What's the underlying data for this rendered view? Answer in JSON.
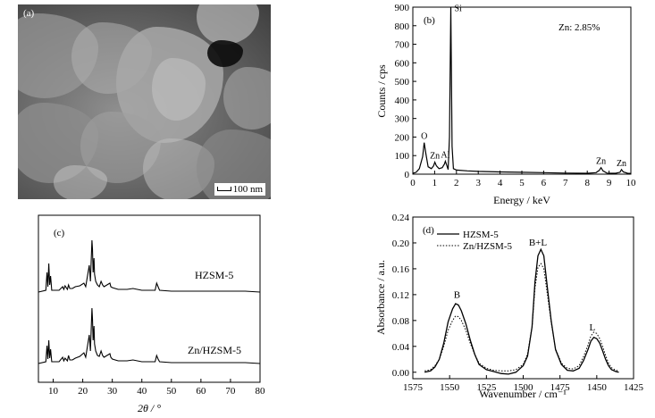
{
  "panels": {
    "a": {
      "label": "(a)",
      "scale_bar": "100 nm"
    },
    "b": {
      "label": "(b)",
      "annotation": "Zn: 2.85%"
    },
    "c": {
      "label": "(c)"
    },
    "d": {
      "label": "(d)"
    }
  },
  "chart_data": [
    {
      "id": "b",
      "type": "line",
      "xlabel": "Energy / keV",
      "ylabel": "Counts / cps",
      "xlim": [
        0,
        10
      ],
      "ylim": [
        0,
        900
      ],
      "xticks": [
        0,
        1,
        2,
        3,
        4,
        5,
        6,
        7,
        8,
        9,
        10
      ],
      "yticks": [
        0,
        100,
        200,
        300,
        400,
        500,
        600,
        700,
        800,
        900
      ],
      "peak_labels": [
        {
          "text": "O",
          "x": 0.52,
          "y": 170
        },
        {
          "text": "Zn",
          "x": 1.01,
          "y": 65
        },
        {
          "text": "Al",
          "x": 1.49,
          "y": 70
        },
        {
          "text": "Si",
          "x": 1.74,
          "y": 900
        },
        {
          "text": "Zn",
          "x": 8.63,
          "y": 35
        },
        {
          "text": "Zn",
          "x": 9.57,
          "y": 25
        }
      ],
      "series": [
        {
          "x": [
            0,
            0.15,
            0.3,
            0.45,
            0.52,
            0.6,
            0.7,
            0.85,
            0.95,
            1.01,
            1.08,
            1.2,
            1.35,
            1.45,
            1.49,
            1.55,
            1.62,
            1.68,
            1.74,
            1.8,
            1.86,
            2.0,
            2.5,
            3,
            4,
            5,
            6,
            7,
            8,
            8.4,
            8.55,
            8.63,
            8.72,
            8.9,
            9.3,
            9.5,
            9.57,
            9.65,
            9.85,
            10
          ],
          "y": [
            5,
            10,
            30,
            95,
            170,
            110,
            40,
            30,
            45,
            65,
            45,
            30,
            35,
            55,
            70,
            50,
            25,
            200,
            900,
            150,
            30,
            22,
            18,
            15,
            12,
            10,
            8,
            6,
            5,
            8,
            20,
            35,
            18,
            6,
            5,
            10,
            25,
            12,
            5,
            4
          ]
        }
      ]
    },
    {
      "id": "c",
      "type": "line",
      "xlabel": "2θ / °",
      "xlim": [
        5,
        80
      ],
      "xticks": [
        10,
        20,
        30,
        40,
        50,
        60,
        70,
        80
      ],
      "series": [
        {
          "name": "HZSM-5",
          "x": [
            5,
            7.5,
            7.9,
            8.2,
            8.5,
            8.8,
            9.1,
            9.5,
            12,
            13.2,
            13.6,
            14,
            14.8,
            15.2,
            15.6,
            16.5,
            17.5,
            19,
            20.4,
            21,
            22.2,
            22.6,
            23.1,
            23.3,
            23.5,
            23.8,
            24.0,
            24.4,
            25,
            25.6,
            26.2,
            26.7,
            27.2,
            29.2,
            29.5,
            30,
            32,
            35,
            37,
            40,
            44.5,
            45.0,
            45.5,
            46,
            50,
            55,
            60,
            65,
            70,
            75,
            80
          ],
          "y": [
            0,
            2,
            22,
            6,
            32,
            8,
            18,
            2,
            2,
            6,
            3,
            7,
            3,
            8,
            4,
            4,
            6,
            7,
            10,
            6,
            30,
            12,
            58,
            48,
            22,
            38,
            20,
            12,
            8,
            6,
            12,
            8,
            6,
            10,
            6,
            5,
            3,
            3,
            4,
            2,
            2,
            10,
            6,
            2,
            1,
            1,
            1,
            1,
            1,
            1,
            0
          ]
        },
        {
          "name": "Zn/HZSM-5",
          "x": [
            5,
            7.5,
            7.9,
            8.2,
            8.5,
            8.8,
            9.1,
            9.5,
            12,
            13.2,
            13.6,
            14,
            14.8,
            15.2,
            15.6,
            16.5,
            17.5,
            19,
            20.4,
            21,
            22.2,
            22.6,
            23.1,
            23.3,
            23.5,
            23.8,
            24.0,
            24.4,
            25,
            25.6,
            26.2,
            26.7,
            27.2,
            29.2,
            29.5,
            30,
            32,
            35,
            37,
            40,
            44.5,
            45.0,
            45.5,
            46,
            50,
            55,
            60,
            65,
            70,
            75,
            80
          ],
          "y": [
            0,
            2,
            20,
            5,
            26,
            6,
            16,
            2,
            2,
            7,
            3,
            6,
            3,
            9,
            4,
            4,
            6,
            8,
            12,
            7,
            32,
            14,
            62,
            50,
            26,
            42,
            22,
            14,
            9,
            8,
            14,
            9,
            7,
            11,
            7,
            5,
            3,
            3,
            4,
            2,
            2,
            9,
            5,
            2,
            1,
            1,
            1,
            1,
            1,
            1,
            0
          ]
        }
      ],
      "series_labels": [
        "HZSM-5",
        "Zn/HZSM-5"
      ]
    },
    {
      "id": "d",
      "type": "line",
      "xlabel": "Wavenumber / cm⁻¹",
      "ylabel": "Absorbance / a.u.",
      "xlim": [
        1575,
        1425
      ],
      "ylim": [
        -0.01,
        0.24
      ],
      "xticks": [
        1575,
        1550,
        1525,
        1500,
        1475,
        1450,
        1425
      ],
      "yticks": [
        0.0,
        0.04,
        0.08,
        0.12,
        0.16,
        0.2,
        0.24
      ],
      "peak_labels": [
        {
          "text": "B",
          "x": 1545,
          "y": 0.112
        },
        {
          "text": "B+L",
          "x": 1490,
          "y": 0.193
        },
        {
          "text": "L",
          "x": 1453,
          "y": 0.062
        }
      ],
      "legend": "top-left",
      "series": [
        {
          "name": "HZSM-5",
          "style": "solid",
          "x": [
            1567,
            1563,
            1560,
            1557,
            1554,
            1551,
            1548,
            1546,
            1544,
            1542,
            1539,
            1536,
            1533,
            1530,
            1525,
            1520,
            1515,
            1510,
            1505,
            1500,
            1497,
            1494,
            1492,
            1490,
            1488,
            1486,
            1484,
            1481,
            1478,
            1474,
            1470,
            1466,
            1462,
            1459,
            1456,
            1454,
            1452,
            1450,
            1448,
            1446,
            1444,
            1442,
            1440,
            1437,
            1435
          ],
          "y": [
            0.0,
            0.002,
            0.008,
            0.02,
            0.045,
            0.078,
            0.098,
            0.106,
            0.104,
            0.095,
            0.075,
            0.05,
            0.028,
            0.012,
            0.004,
            0.001,
            -0.002,
            -0.003,
            0.0,
            0.01,
            0.025,
            0.07,
            0.14,
            0.18,
            0.19,
            0.18,
            0.14,
            0.08,
            0.035,
            0.012,
            0.003,
            0.002,
            0.006,
            0.018,
            0.035,
            0.048,
            0.054,
            0.052,
            0.045,
            0.033,
            0.02,
            0.01,
            0.004,
            0.001,
            0.0
          ]
        },
        {
          "name": "Zn/HZSM-5",
          "style": "dotted",
          "x": [
            1567,
            1563,
            1560,
            1557,
            1554,
            1551,
            1548,
            1546,
            1544,
            1542,
            1539,
            1536,
            1533,
            1530,
            1525,
            1520,
            1515,
            1510,
            1505,
            1500,
            1497,
            1494,
            1492,
            1490,
            1488,
            1486,
            1484,
            1481,
            1478,
            1474,
            1470,
            1466,
            1462,
            1459,
            1456,
            1454,
            1452,
            1450,
            1448,
            1446,
            1444,
            1442,
            1440,
            1437,
            1435
          ],
          "y": [
            0.002,
            0.004,
            0.01,
            0.02,
            0.04,
            0.065,
            0.08,
            0.087,
            0.086,
            0.08,
            0.065,
            0.045,
            0.028,
            0.014,
            0.006,
            0.003,
            0.002,
            0.002,
            0.004,
            0.012,
            0.028,
            0.07,
            0.13,
            0.162,
            0.168,
            0.16,
            0.128,
            0.078,
            0.036,
            0.014,
            0.006,
            0.005,
            0.01,
            0.024,
            0.042,
            0.056,
            0.062,
            0.06,
            0.052,
            0.04,
            0.026,
            0.014,
            0.007,
            0.003,
            0.002
          ]
        }
      ]
    }
  ]
}
